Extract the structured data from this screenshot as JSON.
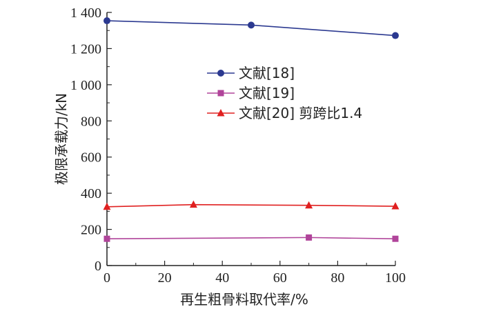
{
  "chart_data": {
    "type": "line",
    "xlabel": "再生粗骨料取代率/%",
    "ylabel": "极限承载力/kN",
    "xlim": [
      0,
      100
    ],
    "ylim": [
      0,
      1400
    ],
    "xticks": [
      0,
      20,
      40,
      60,
      80,
      100
    ],
    "xtick_labels": [
      "0",
      "20",
      "40",
      "60",
      "80",
      "100"
    ],
    "yticks": [
      0,
      200,
      400,
      600,
      800,
      1000,
      1200,
      1400
    ],
    "ytick_labels": [
      "0",
      "200",
      "400",
      "600",
      "800",
      "1 000",
      "1 200",
      "1 400"
    ],
    "grid": false,
    "legend_position": "center",
    "series": [
      {
        "name": "文献[18]",
        "color": "#2b3990",
        "marker": "circle",
        "x": [
          0,
          50,
          100
        ],
        "y": [
          1354,
          1330,
          1272
        ]
      },
      {
        "name": "文献[19]",
        "color": "#b0449a",
        "marker": "square",
        "x": [
          0,
          70,
          100
        ],
        "y": [
          148,
          155,
          148
        ]
      },
      {
        "name": "文献[20] 剪跨比1.4",
        "color": "#e02020",
        "marker": "triangle",
        "x": [
          0,
          30,
          70,
          100
        ],
        "y": [
          325,
          337,
          333,
          328
        ]
      }
    ]
  }
}
